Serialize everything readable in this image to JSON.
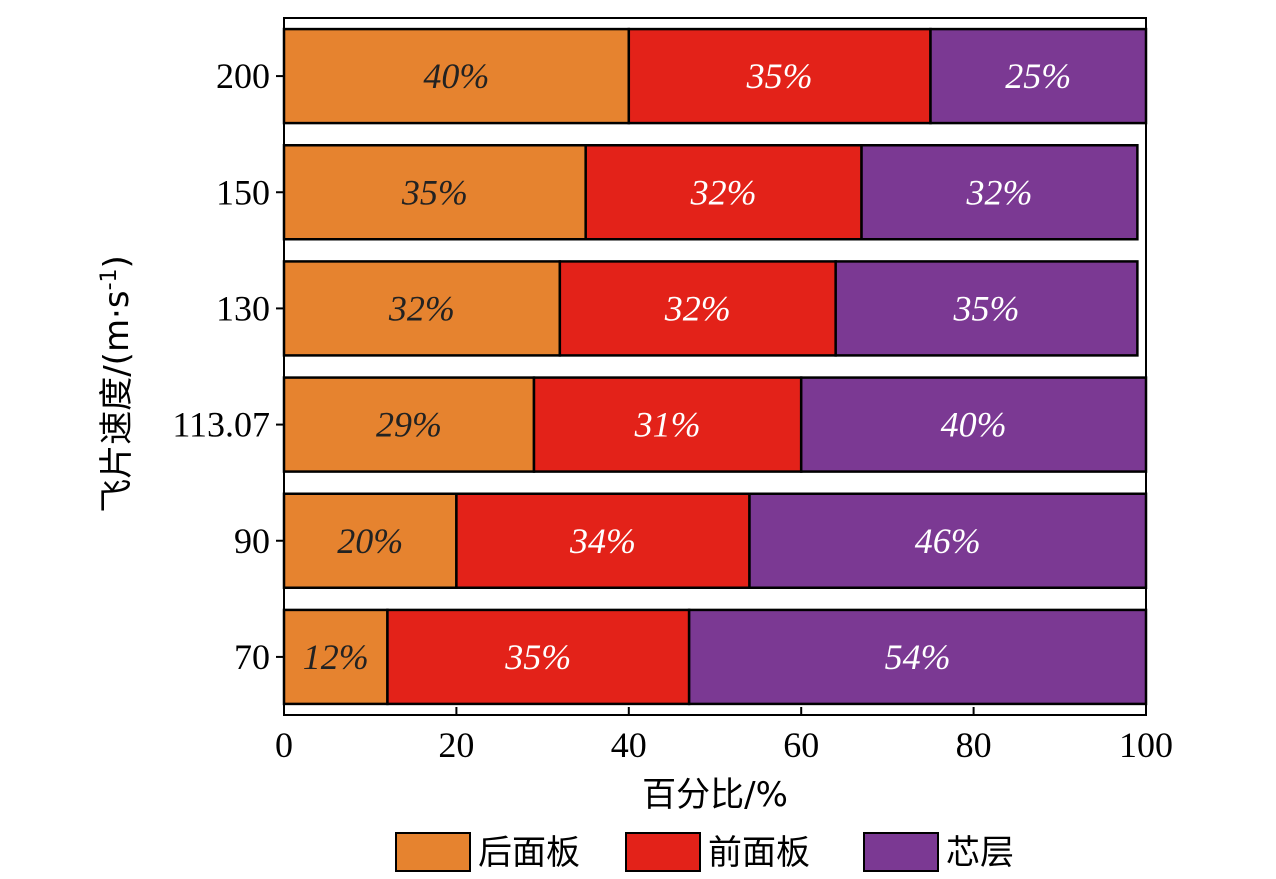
{
  "chart_data": {
    "type": "bar",
    "orientation": "horizontal",
    "stacked": true,
    "categories": [
      "70",
      "90",
      "113.07",
      "130",
      "150",
      "200"
    ],
    "series": [
      {
        "name": "后面板",
        "color": "#E6832F",
        "label_color": "#222222",
        "values": [
          12,
          20,
          29,
          32,
          35,
          40
        ],
        "labels": [
          "12%",
          "20%",
          "29%",
          "32%",
          "35%",
          "40%"
        ]
      },
      {
        "name": "前面板",
        "color": "#E32219",
        "label_color": "#ffffff",
        "values": [
          35,
          34,
          31,
          32,
          32,
          35
        ],
        "labels": [
          "35%",
          "34%",
          "31%",
          "32%",
          "32%",
          "35%"
        ]
      },
      {
        "name": "芯层",
        "color": "#7B3993",
        "label_color": "#ffffff",
        "values": [
          54,
          46,
          40,
          35,
          32,
          25
        ],
        "labels": [
          "54%",
          "46%",
          "40%",
          "35%",
          "32%",
          "25%"
        ]
      }
    ],
    "xlabel": "百分比/%",
    "ylabel_main": "飞片速度/(m·s",
    "ylabel_sup": "-1",
    "ylabel_close": ")",
    "xlim": [
      0,
      100
    ],
    "xticks": [
      0,
      20,
      40,
      60,
      80,
      100
    ],
    "xtick_labels": [
      "0",
      "20",
      "40",
      "60",
      "80",
      "100"
    ],
    "legend_placement": "bottom",
    "grid": false
  }
}
